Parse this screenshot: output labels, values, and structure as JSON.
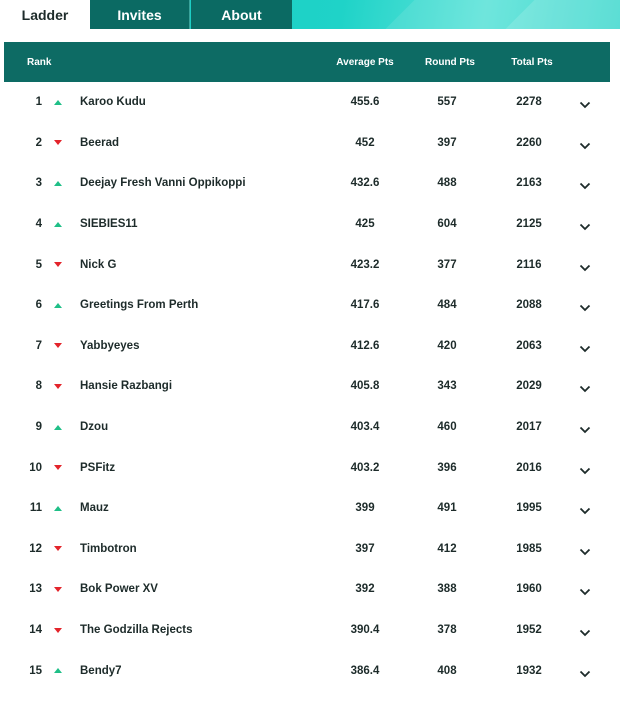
{
  "tabs": [
    {
      "label": "Ladder"
    },
    {
      "label": "Invites"
    },
    {
      "label": "About"
    }
  ],
  "columns": {
    "rank": "Rank",
    "average": "Average Pts",
    "round": "Round Pts",
    "total": "Total Pts"
  },
  "colors": {
    "header": "#0d6b64",
    "up": "#1fbf87",
    "down": "#e3242b"
  },
  "rows": [
    {
      "rank": "1",
      "trend": "up",
      "name": "Karoo Kudu",
      "avg": "455.6",
      "round": "557",
      "total": "2278"
    },
    {
      "rank": "2",
      "trend": "down",
      "name": "Beerad",
      "avg": "452",
      "round": "397",
      "total": "2260"
    },
    {
      "rank": "3",
      "trend": "up",
      "name": "Deejay Fresh Vanni Oppikoppi",
      "avg": "432.6",
      "round": "488",
      "total": "2163"
    },
    {
      "rank": "4",
      "trend": "up",
      "name": "SIEBIES11",
      "avg": "425",
      "round": "604",
      "total": "2125"
    },
    {
      "rank": "5",
      "trend": "down",
      "name": "Nick G",
      "avg": "423.2",
      "round": "377",
      "total": "2116"
    },
    {
      "rank": "6",
      "trend": "up",
      "name": "Greetings From Perth",
      "avg": "417.6",
      "round": "484",
      "total": "2088"
    },
    {
      "rank": "7",
      "trend": "down",
      "name": "Yabbyeyes",
      "avg": "412.6",
      "round": "420",
      "total": "2063"
    },
    {
      "rank": "8",
      "trend": "down",
      "name": "Hansie Razbangi",
      "avg": "405.8",
      "round": "343",
      "total": "2029"
    },
    {
      "rank": "9",
      "trend": "up",
      "name": "Dzou",
      "avg": "403.4",
      "round": "460",
      "total": "2017"
    },
    {
      "rank": "10",
      "trend": "down",
      "name": "PSFitz",
      "avg": "403.2",
      "round": "396",
      "total": "2016"
    },
    {
      "rank": "11",
      "trend": "up",
      "name": "Mauz",
      "avg": "399",
      "round": "491",
      "total": "1995"
    },
    {
      "rank": "12",
      "trend": "down",
      "name": "Timbotron",
      "avg": "397",
      "round": "412",
      "total": "1985"
    },
    {
      "rank": "13",
      "trend": "down",
      "name": "Bok Power XV",
      "avg": "392",
      "round": "388",
      "total": "1960"
    },
    {
      "rank": "14",
      "trend": "down",
      "name": "The Godzilla Rejects",
      "avg": "390.4",
      "round": "378",
      "total": "1952"
    },
    {
      "rank": "15",
      "trend": "up",
      "name": "Bendy7",
      "avg": "386.4",
      "round": "408",
      "total": "1932"
    }
  ]
}
